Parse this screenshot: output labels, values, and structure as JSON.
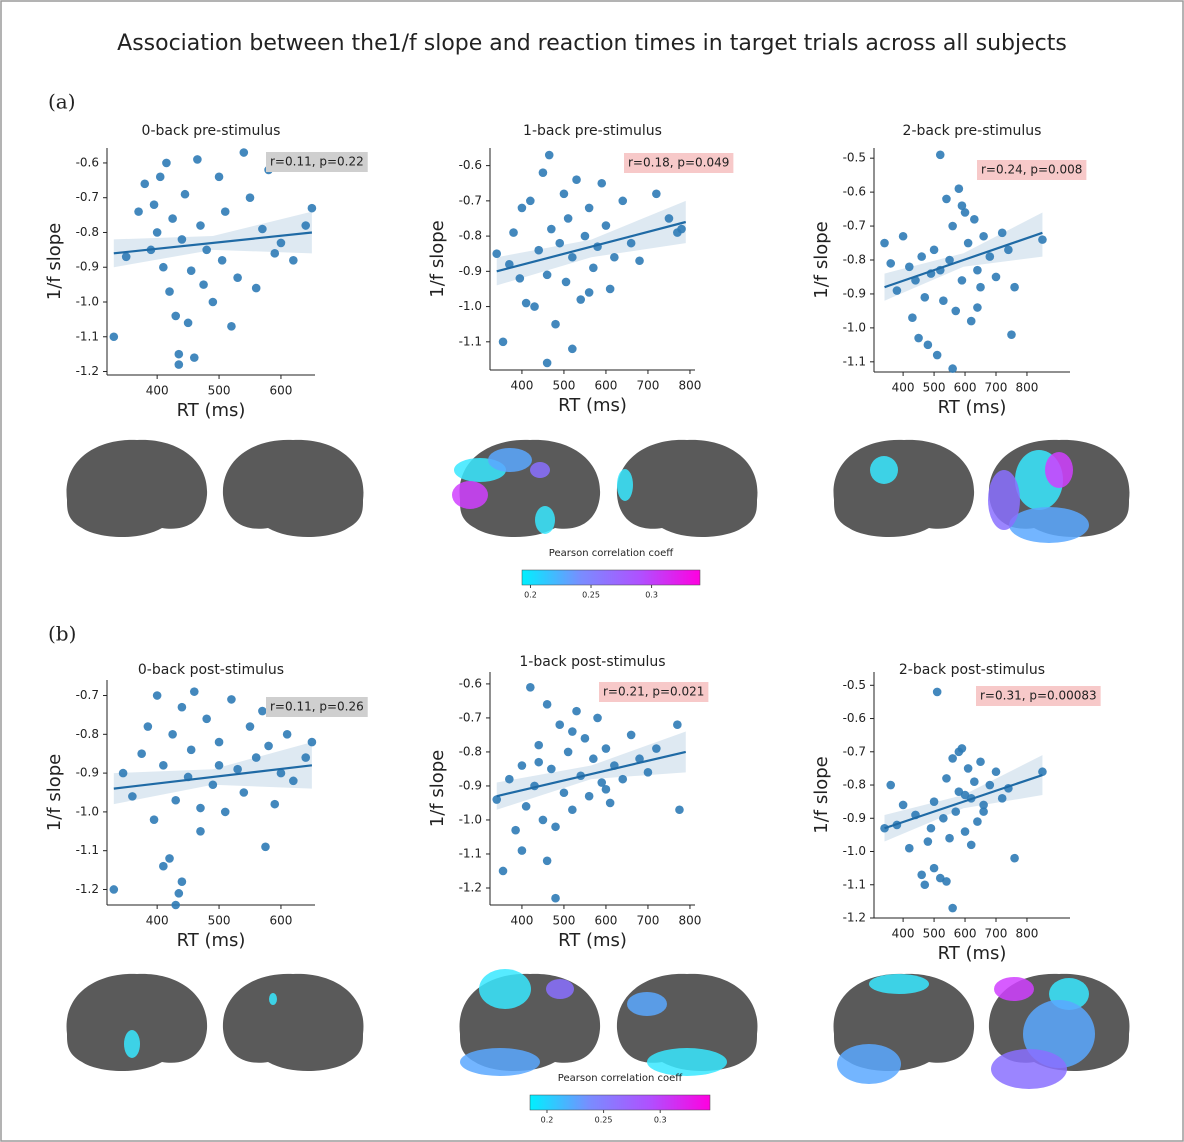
{
  "title": "Association between the1/f slope and reaction times in target trials across all subjects",
  "panel_labels": [
    "(a)",
    "(b)"
  ],
  "colorbars": [
    {
      "title": "Pearson correlation coeff",
      "lim": [
        0.193,
        0.34
      ],
      "ticks": [
        0.2,
        0.25,
        0.3
      ],
      "colors": [
        "#00f0ff",
        "#7a8cff",
        "#b050ff",
        "#ff00e0"
      ]
    },
    {
      "title": "Pearson correlation coeff",
      "lim": [
        0.185,
        0.344
      ],
      "ticks": [
        0.2,
        0.25,
        0.3
      ],
      "colors": [
        "#00f0ff",
        "#7a8cff",
        "#b050ff",
        "#ff00e0"
      ]
    }
  ],
  "chart_data": [
    {
      "type": "scatter",
      "title": "0-back pre-stimulus",
      "xlabel": "RT (ms)",
      "ylabel": "1/f slope",
      "color": "#2f7bb6",
      "fit_color": "#1f6aa5",
      "annotation": "r=0.11, p=0.22",
      "annotation_color": "#cfcfcf",
      "xlim": [
        319,
        655
      ],
      "ylim": [
        -1.21,
        -0.557
      ],
      "xticks": [
        400,
        500,
        600
      ],
      "yticks": [
        -0.6,
        -0.7,
        -0.8,
        -0.9,
        {
          "value": -1,
          "label": "-1.0"
        },
        -1.1,
        -1.2
      ],
      "x": [
        330,
        350,
        370,
        380,
        390,
        395,
        400,
        405,
        410,
        415,
        420,
        425,
        430,
        435,
        440,
        445,
        450,
        455,
        460,
        465,
        470,
        475,
        480,
        490,
        500,
        505,
        510,
        520,
        530,
        540,
        550,
        560,
        570,
        580,
        590,
        600,
        620,
        640,
        650,
        435
      ],
      "values": [
        -1.1,
        -0.87,
        -0.74,
        -0.66,
        -0.85,
        -0.72,
        -0.8,
        -0.64,
        -0.9,
        -0.6,
        -0.97,
        -0.76,
        -1.04,
        -1.15,
        -0.82,
        -0.69,
        -1.06,
        -0.91,
        -1.16,
        -0.59,
        -0.78,
        -0.95,
        -0.85,
        -1.0,
        -0.64,
        -0.88,
        -0.74,
        -1.07,
        -0.93,
        -0.57,
        -0.7,
        -0.96,
        -0.79,
        -0.62,
        -0.86,
        -0.83,
        -0.88,
        -0.78,
        -0.73,
        -1.18
      ],
      "fit": {
        "x": [
          330,
          650
        ],
        "values": [
          -0.86,
          -0.8
        ]
      },
      "ci": {
        "x": [
          330,
          490,
          650
        ],
        "lower": [
          -0.9,
          -0.85,
          -0.86
        ],
        "upper": [
          -0.82,
          -0.81,
          -0.74
        ]
      }
    },
    {
      "type": "scatter",
      "title": "1-back pre-stimulus",
      "xlabel": "RT (ms)",
      "ylabel": "1/f slope",
      "color": "#2f7bb6",
      "fit_color": "#1f6aa5",
      "annotation": "r=0.18, p=0.049",
      "annotation_color": "#f7c9c9",
      "xlim": [
        324,
        812
      ],
      "ylim": [
        -1.18,
        -0.55
      ],
      "xticks": [
        400,
        500,
        600,
        700,
        800
      ],
      "yticks": [
        -0.6,
        -0.7,
        -0.8,
        -0.9,
        {
          "value": -1,
          "label": "-1.0"
        },
        -1.1
      ],
      "x": [
        340,
        355,
        370,
        380,
        395,
        400,
        410,
        420,
        430,
        440,
        450,
        460,
        465,
        470,
        480,
        490,
        500,
        505,
        510,
        520,
        530,
        540,
        550,
        560,
        570,
        580,
        590,
        600,
        610,
        620,
        640,
        660,
        680,
        720,
        750,
        770,
        780,
        460,
        520,
        560
      ],
      "values": [
        -0.85,
        -1.1,
        -0.88,
        -0.79,
        -0.92,
        -0.72,
        -0.99,
        -0.7,
        -1.0,
        -0.84,
        -0.62,
        -0.91,
        -0.57,
        -0.78,
        -1.05,
        -0.82,
        -0.68,
        -0.93,
        -0.75,
        -0.86,
        -0.64,
        -0.98,
        -0.8,
        -0.72,
        -0.89,
        -0.83,
        -0.65,
        -0.77,
        -0.95,
        -0.86,
        -0.7,
        -0.82,
        -0.87,
        -0.68,
        -0.75,
        -0.79,
        -0.78,
        -1.16,
        -1.12,
        -0.96
      ],
      "fit": {
        "x": [
          340,
          790
        ],
        "values": [
          -0.9,
          -0.76
        ]
      },
      "ci": {
        "x": [
          340,
          565,
          790
        ],
        "lower": [
          -0.94,
          -0.86,
          -0.82
        ],
        "upper": [
          -0.86,
          -0.81,
          -0.7
        ]
      }
    },
    {
      "type": "scatter",
      "title": "2-back pre-stimulus",
      "xlabel": "RT (ms)",
      "ylabel": "1/f slope",
      "color": "#2f7bb6",
      "fit_color": "#1f6aa5",
      "annotation": "r=0.24, p=0.008",
      "annotation_color": "#f7c9c9",
      "xlim": [
        306,
        939
      ],
      "ylim": [
        -1.13,
        -0.47
      ],
      "xticks": [
        400,
        500,
        600,
        700,
        800
      ],
      "yticks": [
        -0.5,
        -0.6,
        -0.7,
        -0.8,
        -0.9,
        {
          "value": -1,
          "label": "-1.0"
        },
        -1.1
      ],
      "x": [
        340,
        360,
        380,
        400,
        420,
        430,
        440,
        450,
        460,
        470,
        480,
        490,
        500,
        510,
        520,
        530,
        540,
        550,
        560,
        570,
        580,
        590,
        600,
        610,
        620,
        630,
        640,
        650,
        660,
        680,
        700,
        720,
        740,
        760,
        850,
        520,
        560,
        590,
        750,
        640
      ],
      "values": [
        -0.75,
        -0.81,
        -0.89,
        -0.73,
        -0.82,
        -0.97,
        -0.86,
        -1.03,
        -0.79,
        -0.91,
        -1.05,
        -0.84,
        -0.77,
        -1.08,
        -0.49,
        -0.92,
        -0.62,
        -0.8,
        -0.7,
        -0.95,
        -0.59,
        -0.86,
        -0.66,
        -0.75,
        -0.98,
        -0.68,
        -0.83,
        -0.88,
        -0.73,
        -0.79,
        -0.85,
        -0.72,
        -0.77,
        -0.88,
        -0.74,
        -0.83,
        -1.12,
        -0.64,
        -1.02,
        -0.94
      ],
      "fit": {
        "x": [
          340,
          850
        ],
        "values": [
          -0.88,
          -0.72
        ]
      },
      "ci": {
        "x": [
          340,
          595,
          850
        ],
        "lower": [
          -0.92,
          -0.82,
          -0.79
        ],
        "upper": [
          -0.84,
          -0.78,
          -0.66
        ]
      }
    },
    {
      "type": "scatter",
      "title": "0-back post-stimulus",
      "xlabel": "RT (ms)",
      "ylabel": "1/f slope",
      "color": "#2f7bb6",
      "fit_color": "#1f6aa5",
      "annotation": "r=0.11, p=0.26",
      "annotation_color": "#cfcfcf",
      "xlim": [
        319,
        655
      ],
      "ylim": [
        -1.24,
        -0.66
      ],
      "xticks": [
        400,
        500,
        600
      ],
      "yticks": [
        -0.7,
        -0.8,
        -0.9,
        {
          "value": -1,
          "label": "-1.0"
        },
        -1.1,
        -1.2
      ],
      "x": [
        330,
        345,
        360,
        375,
        385,
        395,
        400,
        410,
        420,
        425,
        430,
        435,
        440,
        450,
        455,
        460,
        470,
        480,
        490,
        500,
        510,
        520,
        530,
        540,
        550,
        560,
        570,
        575,
        580,
        590,
        600,
        610,
        620,
        640,
        650,
        410,
        430,
        440,
        470,
        500
      ],
      "values": [
        -1.2,
        -0.9,
        -0.96,
        -0.85,
        -0.78,
        -1.02,
        -0.7,
        -0.88,
        -1.12,
        -0.8,
        -0.97,
        -1.21,
        -0.73,
        -0.91,
        -0.84,
        -0.69,
        -1.05,
        -0.76,
        -0.93,
        -0.82,
        -1.0,
        -0.71,
        -0.89,
        -0.95,
        -0.78,
        -0.86,
        -0.74,
        -1.09,
        -0.83,
        -0.98,
        -0.9,
        -0.8,
        -0.92,
        -0.86,
        -0.82,
        -1.14,
        -1.24,
        -1.18,
        -0.99,
        -0.88
      ],
      "fit": {
        "x": [
          330,
          650
        ],
        "values": [
          -0.94,
          -0.88
        ]
      },
      "ci": {
        "x": [
          330,
          490,
          650
        ],
        "lower": [
          -0.98,
          -0.93,
          -0.94
        ],
        "upper": [
          -0.9,
          -0.89,
          -0.82
        ]
      }
    },
    {
      "type": "scatter",
      "title": "1-back post-stimulus",
      "xlabel": "RT (ms)",
      "ylabel": "1/f slope",
      "color": "#2f7bb6",
      "fit_color": "#1f6aa5",
      "annotation": "r=0.21, p=0.021",
      "annotation_color": "#f7c9c9",
      "xlim": [
        324,
        812
      ],
      "ylim": [
        -1.25,
        -0.565
      ],
      "xticks": [
        400,
        500,
        600,
        700,
        800
      ],
      "yticks": [
        -0.6,
        -0.7,
        -0.8,
        -0.9,
        {
          "value": -1,
          "label": "-1.0"
        },
        -1.1,
        -1.2
      ],
      "x": [
        340,
        355,
        370,
        385,
        400,
        410,
        420,
        430,
        440,
        450,
        460,
        470,
        480,
        490,
        500,
        510,
        520,
        530,
        540,
        550,
        560,
        570,
        580,
        590,
        600,
        610,
        620,
        640,
        660,
        680,
        700,
        720,
        770,
        775,
        460,
        480,
        400,
        520,
        600,
        440
      ],
      "values": [
        -0.94,
        -1.15,
        -0.88,
        -1.03,
        -0.84,
        -0.96,
        -0.61,
        -0.9,
        -0.78,
        -1.0,
        -0.66,
        -0.85,
        -1.23,
        -0.72,
        -0.92,
        -0.8,
        -0.97,
        -0.68,
        -0.87,
        -0.76,
        -0.93,
        -0.82,
        -0.7,
        -0.89,
        -0.79,
        -0.95,
        -0.84,
        -0.88,
        -0.75,
        -0.82,
        -0.86,
        -0.79,
        -0.72,
        -0.97,
        -1.12,
        -1.02,
        -1.09,
        -0.74,
        -0.91,
        -0.83
      ],
      "fit": {
        "x": [
          340,
          790
        ],
        "values": [
          -0.93,
          -0.8
        ]
      },
      "ci": {
        "x": [
          340,
          565,
          790
        ],
        "lower": [
          -0.97,
          -0.88,
          -0.86
        ],
        "upper": [
          -0.89,
          -0.84,
          -0.74
        ]
      }
    },
    {
      "type": "scatter",
      "title": "2-back post-stimulus",
      "xlabel": "RT (ms)",
      "ylabel": "1/f slope",
      "color": "#2f7bb6",
      "fit_color": "#1f6aa5",
      "annotation": "r=0.31, p=0.00083",
      "annotation_color": "#f7c9c9",
      "xlim": [
        306,
        939
      ],
      "ylim": [
        -1.2,
        -0.46
      ],
      "xticks": [
        400,
        500,
        600,
        700,
        800
      ],
      "yticks": [
        -0.5,
        -0.6,
        -0.7,
        -0.8,
        -0.9,
        {
          "value": -1,
          "label": "-1.0"
        },
        -1.1,
        -1.2
      ],
      "x": [
        340,
        360,
        380,
        400,
        420,
        440,
        460,
        480,
        500,
        510,
        520,
        530,
        540,
        550,
        560,
        570,
        580,
        590,
        600,
        610,
        620,
        630,
        640,
        650,
        660,
        680,
        700,
        720,
        740,
        760,
        850,
        470,
        500,
        560,
        580,
        620,
        540,
        660,
        490,
        600
      ],
      "values": [
        -0.93,
        -0.8,
        -0.92,
        -0.86,
        -0.99,
        -0.89,
        -1.07,
        -0.97,
        -0.85,
        -0.52,
        -1.08,
        -0.9,
        -0.78,
        -0.96,
        -0.72,
        -0.88,
        -0.82,
        -0.69,
        -0.94,
        -0.75,
        -0.84,
        -0.79,
        -0.91,
        -0.73,
        -0.86,
        -0.8,
        -0.76,
        -0.84,
        -0.81,
        -1.02,
        -0.76,
        -1.1,
        -1.05,
        -1.17,
        -0.7,
        -0.98,
        -1.09,
        -0.88,
        -0.93,
        -0.83
      ],
      "fit": {
        "x": [
          340,
          850
        ],
        "values": [
          -0.93,
          -0.77
        ]
      },
      "ci": {
        "x": [
          340,
          595,
          850
        ],
        "lower": [
          -0.97,
          -0.87,
          -0.83
        ],
        "upper": [
          -0.89,
          -0.83,
          -0.71
        ]
      }
    }
  ]
}
